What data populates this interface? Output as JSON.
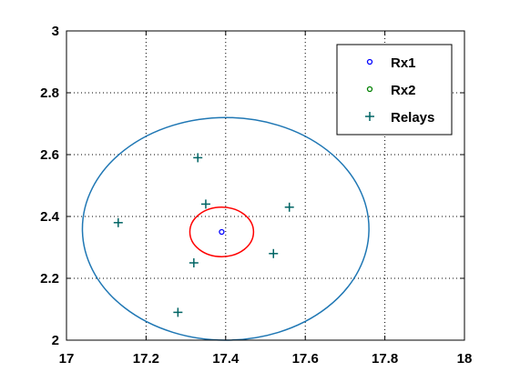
{
  "chart_data": {
    "type": "scatter",
    "title": "",
    "xlabel": "",
    "ylabel": "",
    "xlim": [
      17,
      18
    ],
    "ylim": [
      2,
      3
    ],
    "xticks": [
      17,
      17.2,
      17.4,
      17.6,
      17.8,
      18
    ],
    "yticks": [
      2,
      2.2,
      2.4,
      2.6,
      2.8,
      3
    ],
    "xtick_labels": [
      "17",
      "17.2",
      "17.4",
      "17.6",
      "17.8",
      "18"
    ],
    "ytick_labels": [
      "2",
      "2.2",
      "2.4",
      "2.6",
      "2.8",
      "3"
    ],
    "grid": true,
    "legend_position": "top-right",
    "series": [
      {
        "name": "Rx1",
        "marker": "circle",
        "color": "#0000ff",
        "points": [
          [
            17.39,
            2.35
          ]
        ]
      },
      {
        "name": "Rx2",
        "marker": "circle",
        "color": "#008000",
        "points": []
      },
      {
        "name": "Relays",
        "marker": "plus",
        "color": "#006464",
        "points": [
          [
            17.13,
            2.38
          ],
          [
            17.28,
            2.09
          ],
          [
            17.32,
            2.25
          ],
          [
            17.33,
            2.59
          ],
          [
            17.35,
            2.44
          ],
          [
            17.52,
            2.28
          ],
          [
            17.56,
            2.43
          ]
        ]
      }
    ],
    "circles": [
      {
        "cx": 17.4,
        "cy": 2.36,
        "r": 0.36,
        "color": "#1f77b4"
      },
      {
        "cx": 17.39,
        "cy": 2.35,
        "r": 0.08,
        "color": "#ff0000"
      }
    ]
  }
}
